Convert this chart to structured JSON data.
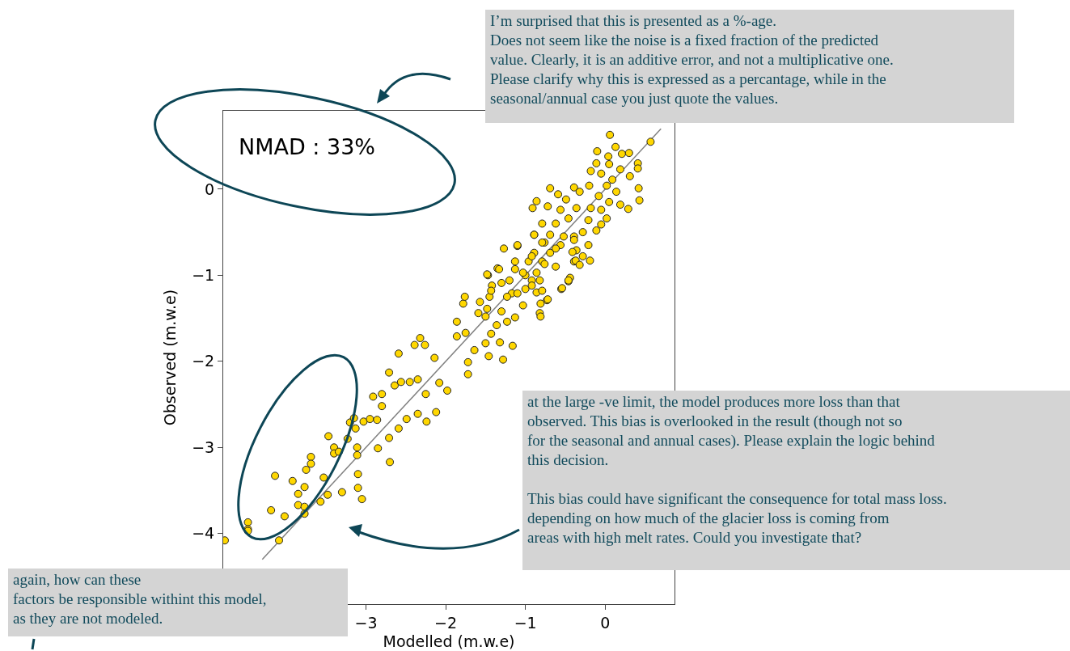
{
  "chart_data": {
    "type": "scatter",
    "xlabel": "Modelled (m.w.e)",
    "ylabel": "Observed (m.w.e)",
    "annotations": [
      "NMAD : 33%",
      "I’m surprised that this is presented as a %-age.\nDoes not seem like the noise is a fixed fraction of the predicted\nvalue. Clearly, it is an additive error, and not a multiplicative one.\nPlease clarify why this is expressed as a percantage, while in the\nseasonal/annual case you just quote the values.",
      "at the large -ve limit, the model produces more loss than that\nobserved. This bias is overlooked in the result (though not so\nfor the seasonal and annual cases). Please explain the logic behind\nthis decision.\n\nThis bias could have significant the consequence for total mass loss.\ndepending on how much of the glacier loss is coming from\nareas with high melt rates. Could you investigate  that?",
      "again, how can these\nfactors be responsible withint this model,\nas they are not modeled."
    ],
    "xlim": [
      -4.79,
      0.87
    ],
    "ylim": [
      -4.82,
      0.91
    ],
    "xticks": [
      -3,
      -2,
      -1,
      0
    ],
    "yticks": [
      -4,
      -3,
      -2,
      -1,
      0
    ],
    "grid": false,
    "series": [
      {
        "color": "#ffd700",
        "marker": "circle",
        "x": [
          -4.77,
          -4.48,
          -4.48,
          -4.48,
          -4.19,
          -4.14,
          -4.02,
          -4.09,
          -3.92,
          -3.85,
          -3.77,
          -3.85,
          -3.77,
          -3.77,
          -3.75,
          -3.69,
          -3.69,
          -3.53,
          -3.57,
          -3.47,
          -3.48,
          -3.4,
          -3.4,
          -3.34,
          -3.3,
          -3.23,
          -3.2,
          -3.15,
          -3.13,
          -3.11,
          -3.11,
          -3.1,
          -3.1,
          -3.05,
          -3.03,
          -2.95,
          -2.86,
          -2.91,
          -2.8,
          -2.8,
          -2.85,
          -2.71,
          -2.7,
          -2.71,
          -2.64,
          -2.59,
          -2.59,
          -2.32,
          -2.39,
          -2.26,
          -2.14,
          -2.56,
          -2.45,
          -2.35,
          -2.08,
          -1.98,
          -2.25,
          -2.12,
          -2.24,
          -2.49,
          -2.35,
          -1.86,
          -1.75,
          -1.86,
          -1.72,
          -1.64,
          -1.72,
          -1.46,
          -1.28,
          -1.16,
          -1.32,
          -1.5,
          -1.43,
          -1.78,
          -1.76,
          -1.57,
          -1.59,
          -1.48,
          -1.45,
          -1.42,
          -1.47,
          -1.35,
          -1.27,
          -1.1,
          -1.13,
          -1.23,
          -1.36,
          -1.3,
          -1.5,
          -1.03,
          -0.82,
          -0.81,
          -0.73,
          -0.81,
          -0.86,
          -1.0,
          -1.17,
          -0.55,
          -0.46,
          -0.44,
          -0.92,
          -0.82,
          -1.0,
          -1.13,
          -0.96,
          -0.79,
          -0.69,
          -0.89,
          -0.62,
          -0.56,
          -0.76,
          -0.89,
          -0.39,
          -0.36,
          -0.39,
          0.06,
          0.57,
          0.13,
          -0.1,
          0.04,
          -0.11,
          0.21,
          0.3,
          0.41,
          0.41,
          0.31,
          0.42,
          0.43,
          0.29,
          0.19,
          0.14,
          0.05,
          -0.18,
          -0.05,
          0.09,
          0.19,
          -0.2,
          -0.08,
          0.02,
          0.05,
          -0.05,
          0.02,
          -0.69,
          -0.59,
          -0.39,
          -0.32,
          -0.49,
          -0.86,
          -0.91,
          -0.72,
          -0.56,
          -0.36,
          -0.18,
          -0.21,
          -0.11,
          -0.05,
          -0.28,
          -0.21,
          -0.28,
          -0.19,
          -0.37,
          -0.41,
          -0.32,
          -0.46,
          -0.54,
          -0.46,
          -0.62,
          -0.79,
          -0.89,
          -0.69,
          -0.52,
          -0.39,
          -0.62,
          -0.79,
          -1.1,
          -1.13,
          -0.92,
          -0.76,
          -0.86,
          -1.03,
          -1.2,
          -1.48,
          -1.33,
          -1.3,
          -1.43,
          -1.1,
          -0.92,
          -0.72,
          -0.79,
          -1.23
        ],
        "values": [
          -4.08,
          -3.87,
          -3.95,
          -3.97,
          -3.73,
          -3.33,
          -3.8,
          -4.08,
          -3.39,
          -3.54,
          -3.46,
          -3.67,
          -3.69,
          -3.77,
          -3.26,
          -3.11,
          -3.19,
          -3.35,
          -3.63,
          -2.87,
          -3.55,
          -3.0,
          -3.07,
          -3.05,
          -3.52,
          -2.9,
          -2.71,
          -2.66,
          -2.78,
          -3.0,
          -3.09,
          -3.31,
          -3.47,
          -3.6,
          -2.7,
          -2.67,
          -2.68,
          -2.41,
          -2.38,
          -2.52,
          -3.01,
          -2.13,
          -3.17,
          -2.89,
          -2.28,
          -1.91,
          -2.78,
          -1.73,
          -1.81,
          -1.81,
          -1.96,
          -2.24,
          -2.24,
          -2.21,
          -2.25,
          -2.34,
          -2.38,
          -2.59,
          -2.7,
          -2.67,
          -2.61,
          -1.71,
          -1.67,
          -1.54,
          -2.15,
          -1.87,
          -2.01,
          -1.94,
          -1.98,
          -1.82,
          -1.78,
          -1.79,
          -1.68,
          -1.33,
          -1.25,
          -1.31,
          -1.44,
          -1.39,
          -1.25,
          -1.12,
          -1.0,
          -0.92,
          -0.69,
          -0.66,
          -1.49,
          -1.54,
          -1.58,
          -1.42,
          -1.48,
          -1.35,
          -1.44,
          -1.48,
          -1.29,
          -1.33,
          -1.2,
          -1.16,
          -1.21,
          -1.16,
          -1.07,
          -1.03,
          -1.06,
          -1.06,
          -1.0,
          -0.93,
          -0.84,
          -0.84,
          -0.74,
          -0.74,
          -0.9,
          -0.65,
          -0.62,
          -0.53,
          -0.84,
          -0.71,
          -0.55,
          0.63,
          0.55,
          0.49,
          0.44,
          0.38,
          0.3,
          0.41,
          0.42,
          0.3,
          0.24,
          0.15,
          0.01,
          -0.13,
          -0.23,
          -0.18,
          -0.03,
          0.29,
          0.21,
          0.18,
          0.11,
          0.23,
          0.04,
          -0.08,
          0.04,
          -0.15,
          -0.24,
          -0.34,
          0.01,
          -0.06,
          0.02,
          -0.03,
          -0.12,
          -0.14,
          -0.22,
          -0.2,
          -0.24,
          -0.22,
          -0.22,
          -0.36,
          -0.48,
          -0.41,
          -0.5,
          -0.65,
          -0.78,
          -0.83,
          -0.83,
          -0.73,
          -0.88,
          -1.06,
          -1.15,
          -0.34,
          -0.4,
          -0.4,
          -0.53,
          -0.53,
          -0.55,
          -0.59,
          -0.69,
          -0.62,
          -0.65,
          -0.84,
          -0.78,
          -0.87,
          -0.97,
          -0.97,
          -1.06,
          -0.99,
          -0.93,
          -1.09,
          -1.18,
          -1.21,
          -1.12,
          -1.28,
          -1.18,
          -1.25
        ]
      },
      {
        "type": "line",
        "color": "#808080",
        "x": [
          -4.3,
          0.7
        ],
        "values": [
          -4.3,
          0.7
        ]
      }
    ]
  }
}
